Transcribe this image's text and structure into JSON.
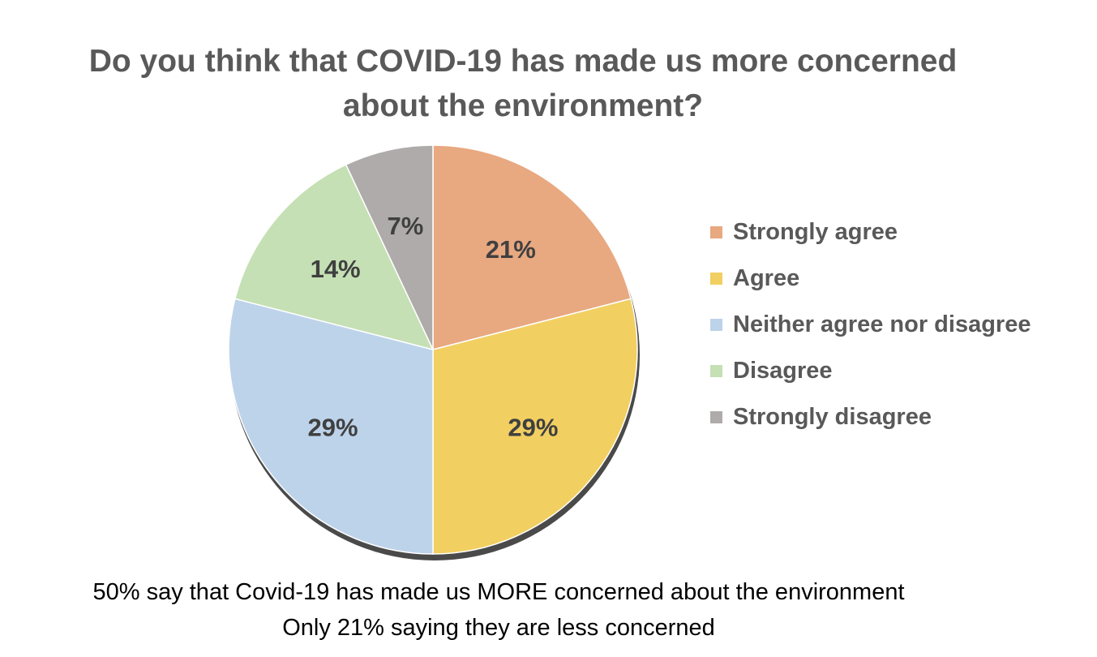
{
  "chart_data": {
    "type": "pie",
    "title_lines": [
      "Do you think that COVID-19 has made us more concerned",
      "about the environment?"
    ],
    "categories": [
      "Strongly agree",
      "Agree",
      "Neither agree nor disagree",
      "Disagree",
      "Strongly disagree"
    ],
    "values": [
      21,
      29,
      29,
      14,
      7
    ],
    "data_labels": [
      "21%",
      "29%",
      "29%",
      "14%",
      "7%"
    ],
    "colors": [
      "#E8A880",
      "#F2CF61",
      "#BDD3EA",
      "#C5E0B4",
      "#AFABAB"
    ],
    "legend_position": "right",
    "annotations": [
      "50% say that Covid-19 has made us MORE concerned about the environment",
      "Only 21% saying they are less concerned"
    ]
  }
}
